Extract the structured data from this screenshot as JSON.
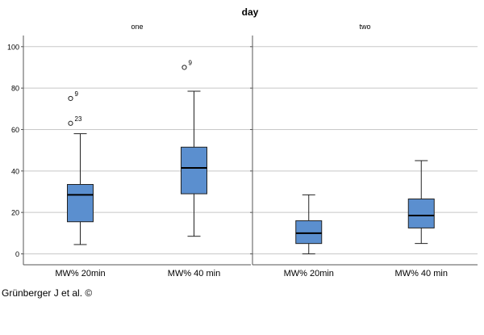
{
  "chart_data": {
    "type": "boxplot",
    "title": "day",
    "xlabel": "",
    "ylabel": "",
    "ylim": [
      0,
      100
    ],
    "yticks": [
      0,
      20,
      40,
      60,
      80,
      100
    ],
    "grid": true,
    "box_color": "#5b8fcf",
    "panels": [
      {
        "label": "one",
        "categories": [
          "MW% 20min",
          "MW% 40 min"
        ],
        "boxes": [
          {
            "min": 4.5,
            "q1": 15.5,
            "median": 28.5,
            "q3": 33.5,
            "max": 58,
            "outliers": [
              {
                "value": 75,
                "label": "9"
              },
              {
                "value": 63,
                "label": "23"
              }
            ]
          },
          {
            "min": 8.5,
            "q1": 29,
            "median": 41.5,
            "q3": 51.5,
            "max": 78.5,
            "outliers": [
              {
                "value": 90,
                "label": "9"
              }
            ]
          }
        ]
      },
      {
        "label": "two",
        "categories": [
          "MW% 20min",
          "MW% 40 min"
        ],
        "boxes": [
          {
            "min": 0,
            "q1": 5,
            "median": 10,
            "q3": 16,
            "max": 28.5,
            "outliers": []
          },
          {
            "min": 5,
            "q1": 12.5,
            "median": 18.5,
            "q3": 26.5,
            "max": 45,
            "outliers": []
          }
        ]
      }
    ]
  },
  "credit": "Grünberger J et al. ©"
}
